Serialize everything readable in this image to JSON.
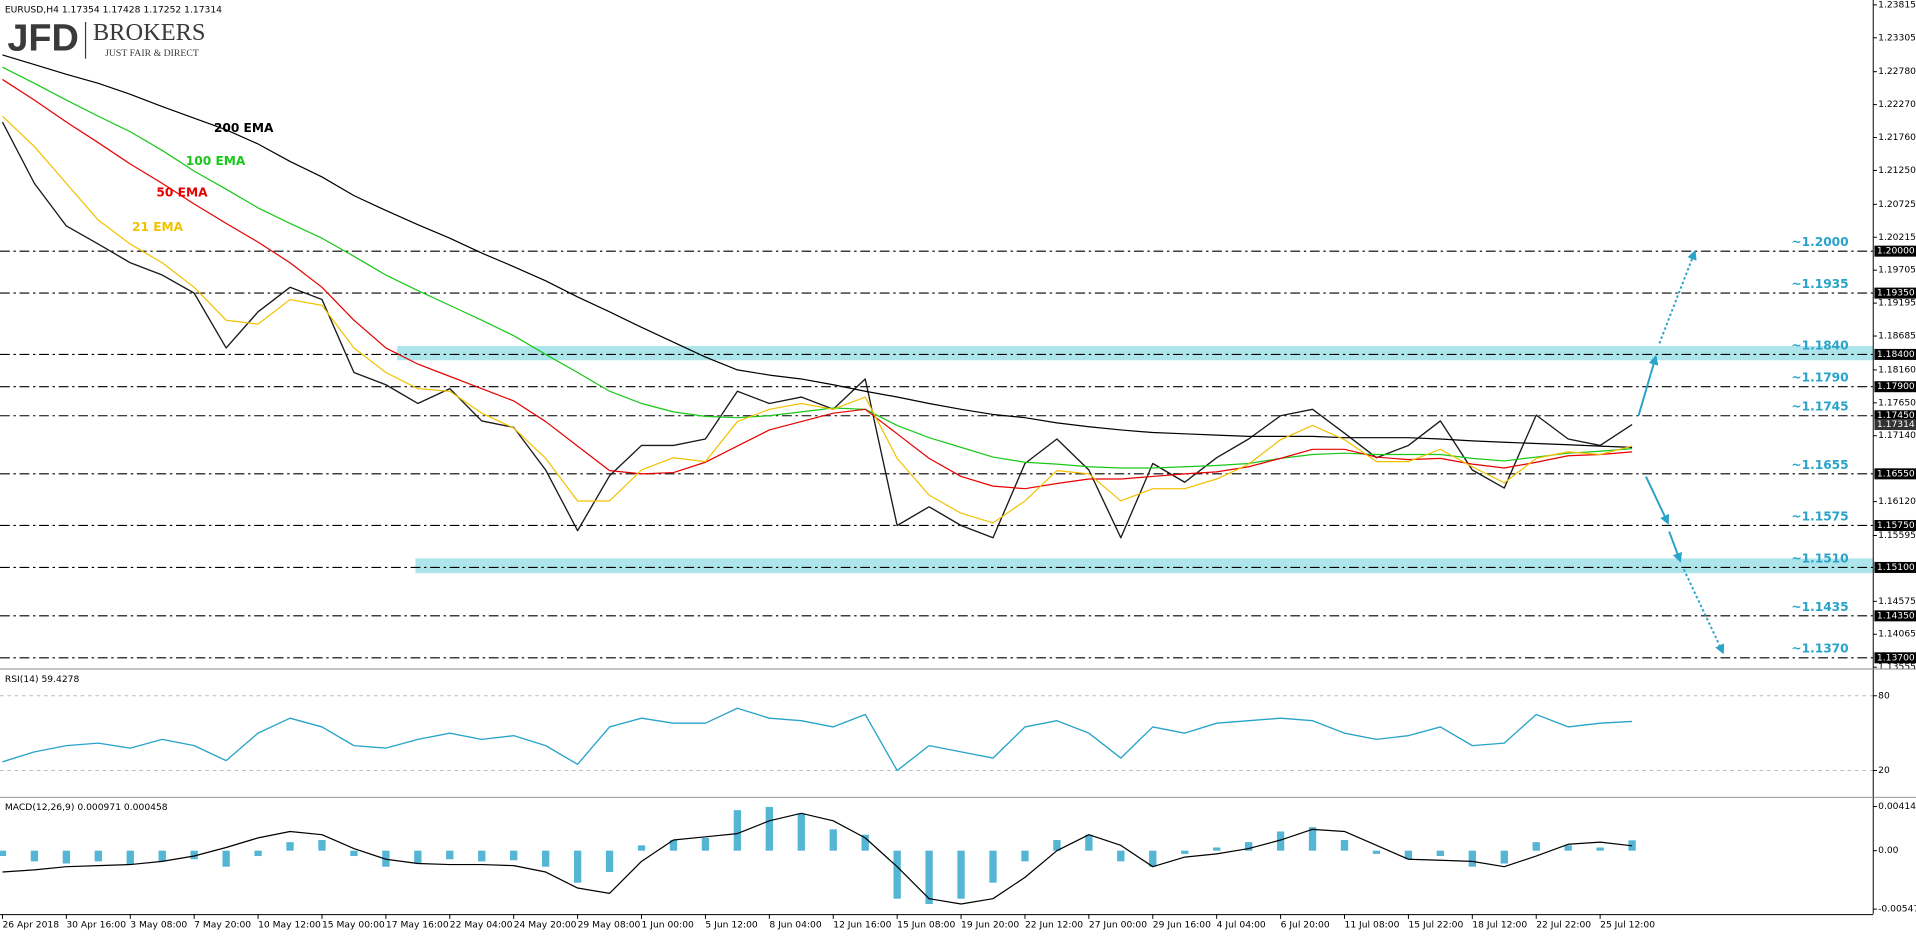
{
  "brand": {
    "name": "JFD",
    "suffix": "BROKERS",
    "tagline": "JUST FAIR & DIRECT"
  },
  "chart_data": [
    {
      "type": "line",
      "title": "EURUSD,H4  1.17354 1.17428 1.17252 1.17314",
      "categories": [
        "26 Apr 2018",
        null,
        "30 Apr 16:00",
        null,
        "3 May 08:00",
        null,
        "7 May 20:00",
        null,
        "10 May 12:00",
        null,
        "15 May 00:00",
        null,
        "17 May 16:00",
        null,
        "22 May 04:00",
        null,
        "24 May 20:00",
        null,
        "29 May 08:00",
        null,
        "1 Jun 00:00",
        null,
        "5 Jun 12:00",
        null,
        "8 Jun 04:00",
        null,
        "12 Jun 16:00",
        null,
        "15 Jun 08:00",
        null,
        "19 Jun 20:00",
        null,
        "22 Jun 12:00",
        null,
        "27 Jun 00:00",
        null,
        "29 Jun 16:00",
        null,
        "4 Jul 04:00",
        null,
        "6 Jul 20:00",
        null,
        "11 Jul 08:00",
        null,
        "15 Jul 22:00",
        null,
        "18 Jul 12:00",
        null,
        "22 Jul 22:00",
        null,
        "25 Jul 12:00",
        null
      ],
      "series": [
        {
          "color": "#1a1a1a",
          "values": [
            1.22,
            1.2105,
            1.2039,
            1.2011,
            1.1982,
            1.1963,
            1.1935,
            1.185,
            1.1906,
            1.1944,
            1.1925,
            1.1812,
            1.1793,
            1.1764,
            1.1787,
            1.1737,
            1.1727,
            1.1661,
            1.1567,
            1.1652,
            1.1699,
            1.1699,
            1.1709,
            1.1783,
            1.1764,
            1.1774,
            1.1755,
            1.1802,
            1.1575,
            1.1604,
            1.1575,
            1.1556,
            1.1671,
            1.1709,
            1.1661,
            1.1556,
            1.1671,
            1.1642,
            1.168,
            1.1709,
            1.1745,
            1.1755,
            1.1718,
            1.168,
            1.1699,
            1.1737,
            1.1661,
            1.1633,
            1.1746,
            1.1709,
            1.1699,
            1.17314
          ]
        },
        {
          "name": "200 EMA",
          "color": "#000000",
          "values": [
            1.2304,
            1.2289,
            1.2274,
            1.226,
            1.2243,
            1.2224,
            1.2206,
            1.2188,
            1.2166,
            1.2139,
            1.2115,
            1.2086,
            1.2063,
            1.2041,
            1.202,
            1.1997,
            1.1976,
            1.1954,
            1.1929,
            1.1906,
            1.1882,
            1.1859,
            1.1836,
            1.1816,
            1.1808,
            1.1802,
            1.1793,
            1.1783,
            1.1774,
            1.1764,
            1.1755,
            1.1747,
            1.1742,
            1.1734,
            1.1728,
            1.1723,
            1.1719,
            1.1717,
            1.1715,
            1.1713,
            1.1713,
            1.1713,
            1.1711,
            1.1711,
            1.1711,
            1.1709,
            1.1706,
            1.1704,
            1.1702,
            1.17,
            1.1698,
            1.1696
          ]
        },
        {
          "name": "100 EMA",
          "color": "#19c819",
          "values": [
            1.2285,
            1.226,
            1.2234,
            1.2209,
            1.2185,
            1.2156,
            1.2124,
            1.2096,
            1.2067,
            1.2043,
            1.202,
            1.1992,
            1.1963,
            1.1939,
            1.1916,
            1.1893,
            1.1869,
            1.184,
            1.1812,
            1.1783,
            1.1764,
            1.1751,
            1.1744,
            1.1742,
            1.1745,
            1.1751,
            1.1757,
            1.1755,
            1.173,
            1.1711,
            1.1696,
            1.1681,
            1.1673,
            1.167,
            1.1666,
            1.1664,
            1.1664,
            1.1666,
            1.1668,
            1.1671,
            1.1679,
            1.1685,
            1.1687,
            1.1685,
            1.1685,
            1.1685,
            1.1679,
            1.1675,
            1.1681,
            1.1687,
            1.169,
            1.1694
          ]
        },
        {
          "name": "50 EMA",
          "color": "#e60000",
          "values": [
            1.2266,
            1.2234,
            1.22,
            1.2168,
            1.2135,
            1.2105,
            1.2073,
            1.2043,
            1.2014,
            1.1982,
            1.1944,
            1.1893,
            1.185,
            1.1825,
            1.1806,
            1.1787,
            1.1768,
            1.1736,
            1.1698,
            1.166,
            1.1655,
            1.1657,
            1.1673,
            1.1698,
            1.1723,
            1.1736,
            1.1749,
            1.1755,
            1.1717,
            1.1679,
            1.1651,
            1.1636,
            1.1632,
            1.164,
            1.1647,
            1.1647,
            1.1651,
            1.1655,
            1.1658,
            1.1666,
            1.1679,
            1.1693,
            1.1693,
            1.1681,
            1.1677,
            1.1679,
            1.167,
            1.1664,
            1.1673,
            1.1683,
            1.1685,
            1.1689
          ]
        },
        {
          "name": "21 EMA",
          "color": "#f2c200",
          "values": [
            1.2209,
            1.2162,
            1.2105,
            1.2048,
            1.2011,
            1.1982,
            1.1944,
            1.1893,
            1.1887,
            1.1925,
            1.1916,
            1.185,
            1.1812,
            1.1787,
            1.1783,
            1.1749,
            1.1726,
            1.1679,
            1.1613,
            1.1613,
            1.1661,
            1.168,
            1.1674,
            1.1736,
            1.1755,
            1.1764,
            1.1755,
            1.1774,
            1.1679,
            1.1622,
            1.1594,
            1.1579,
            1.1613,
            1.166,
            1.1655,
            1.1613,
            1.1632,
            1.1632,
            1.1647,
            1.167,
            1.1708,
            1.173,
            1.1708,
            1.1674,
            1.1674,
            1.1693,
            1.1666,
            1.1641,
            1.1679,
            1.1689,
            1.1685,
            1.1698
          ]
        }
      ],
      "ylim": [
        1.13555,
        1.23815
      ],
      "yticks": [
        1.23815,
        1.23305,
        {
          "value": 1.2278,
          "label": "1.22780"
        },
        {
          "value": 1.2227,
          "label": "1.22270"
        },
        {
          "value": 1.2176,
          "label": "1.21760"
        },
        {
          "value": 1.2125,
          "label": "1.21250"
        },
        1.20725,
        1.20215,
        1.19705,
        1.19195,
        1.18685,
        {
          "value": 1.1816,
          "label": "1.18160"
        },
        {
          "value": 1.1765,
          "label": "1.17650"
        },
        {
          "value": 1.1714,
          "label": "1.17140"
        },
        {
          "value": 1.1612,
          "label": "1.16120"
        },
        1.15595,
        1.14575,
        1.14065,
        1.13555
      ],
      "zones": [
        {
          "from": 1.1831,
          "to": 1.1853
        },
        {
          "from": 1.1501,
          "to": 1.1524
        }
      ],
      "levels": [
        {
          "value": 1.2,
          "label": "1.20000",
          "note": "~1.2000"
        },
        {
          "value": 1.1935,
          "label": "1.19350",
          "note": "~1.1935"
        },
        {
          "value": 1.184,
          "label": "1.18400",
          "note": "~1.1840"
        },
        {
          "value": 1.179,
          "label": "1.17900",
          "note": "~1.1790"
        },
        {
          "value": 1.1745,
          "label": "1.17450",
          "note": "~1.1745"
        },
        {
          "value": 1.1655,
          "label": "1.16550",
          "note": "~1.1655"
        },
        {
          "value": 1.1575,
          "label": "1.15750",
          "note": "~1.1575"
        },
        {
          "value": 1.151,
          "label": "1.15100",
          "note": "~1.1510"
        },
        {
          "value": 1.1435,
          "label": "1.14350",
          "note": "~1.1435"
        },
        {
          "value": 1.137,
          "label": "1.13700",
          "note": "~1.1370"
        }
      ],
      "last_price": 1.17314
    },
    {
      "type": "line",
      "title": "RSI(14) 59.4278",
      "series": [
        {
          "color": "#29a3c9",
          "values": [
            27,
            35,
            40,
            42,
            38,
            45,
            40,
            28,
            50,
            62,
            55,
            40,
            38,
            45,
            50,
            45,
            48,
            40,
            25,
            55,
            62,
            58,
            58,
            70,
            62,
            60,
            55,
            65,
            20,
            40,
            35,
            30,
            55,
            60,
            50,
            30,
            55,
            50,
            58,
            60,
            62,
            60,
            50,
            45,
            48,
            55,
            40,
            42,
            65,
            55,
            58,
            59.4278
          ]
        }
      ],
      "ylim": [
        0,
        100
      ],
      "yticks": [
        20,
        80
      ]
    },
    {
      "type": "bar",
      "title": "MACD(12,26,9) 0.000971 0.000458",
      "series": [
        {
          "color": "#29a3c9",
          "values": [
            -0.0005,
            -0.001,
            -0.0012,
            -0.001,
            -0.0013,
            -0.001,
            -0.0008,
            -0.0015,
            -0.0005,
            0.0008,
            0.001,
            -0.0005,
            -0.0015,
            -0.0012,
            -0.0008,
            -0.001,
            -0.0009,
            -0.0015,
            -0.003,
            -0.002,
            0.0005,
            0.001,
            0.0012,
            0.0038,
            0.0041,
            0.0035,
            0.002,
            0.0015,
            -0.0045,
            -0.005,
            -0.0045,
            -0.003,
            -0.001,
            0.001,
            0.0015,
            -0.001,
            -0.0015,
            -0.0003,
            0.0003,
            0.0008,
            0.0018,
            0.0022,
            0.001,
            -0.0003,
            -0.0008,
            -0.0005,
            -0.0015,
            -0.0012,
            0.0008,
            0.0005,
            0.0003,
            0.000971
          ]
        },
        {
          "color": "#000000",
          "values": [
            -0.002,
            -0.0018,
            -0.0015,
            -0.0014,
            -0.0013,
            -0.001,
            -0.0005,
            0.0003,
            0.0012,
            0.0018,
            0.0015,
            0.0002,
            -0.0008,
            -0.0012,
            -0.0013,
            -0.0013,
            -0.0014,
            -0.002,
            -0.0035,
            -0.004,
            -0.001,
            0.001,
            0.0013,
            0.0016,
            0.0028,
            0.0035,
            0.0028,
            0.0012,
            -0.0015,
            -0.0045,
            -0.005,
            -0.0045,
            -0.0025,
            0,
            0.0015,
            0.0005,
            -0.0015,
            -0.0006,
            -0.0003,
            0.0002,
            0.001,
            0.002,
            0.0018,
            0.0005,
            -0.0008,
            -0.0009,
            -0.001,
            -0.0015,
            -0.0005,
            0.0006,
            0.0008,
            0.000458
          ]
        }
      ],
      "ylim": [
        -0.005477,
        0.004144
      ],
      "yticks": [
        0.004144,
        {
          "value": 0,
          "label": "0.00"
        },
        -0.005477
      ]
    }
  ]
}
